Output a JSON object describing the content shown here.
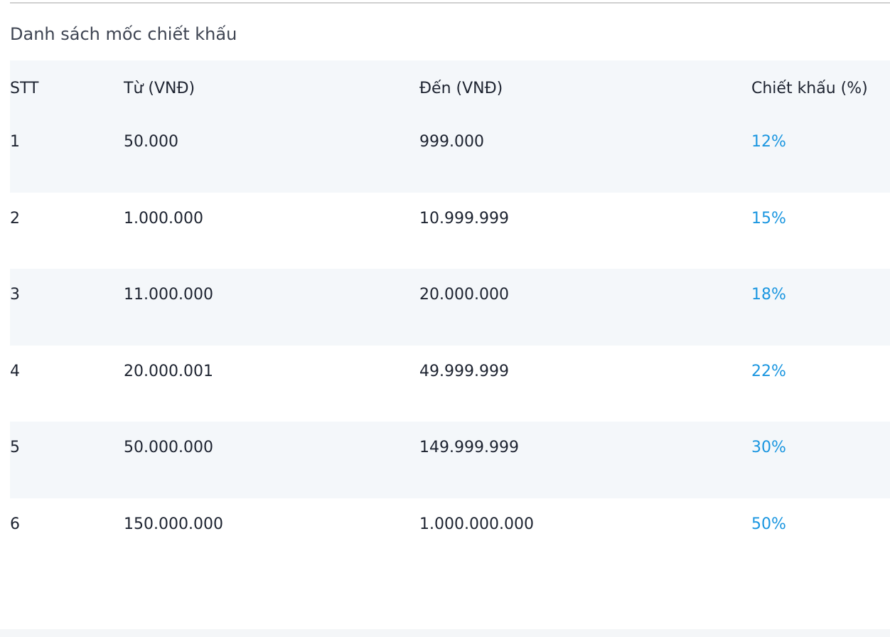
{
  "title": "Danh sách mốc chiết khấu",
  "table": {
    "headers": [
      "STT",
      "Từ (VNĐ)",
      "Đến (VNĐ)",
      "Chiết khấu (%)"
    ],
    "rows": [
      [
        "1",
        "50.000",
        "999.000",
        "12%"
      ],
      [
        "2",
        "1.000.000",
        "10.999.999",
        "15%"
      ],
      [
        "3",
        "11.000.000",
        "20.000.000",
        "18%"
      ],
      [
        "4",
        "20.000.001",
        "49.999.999",
        "22%"
      ],
      [
        "5",
        "50.000.000",
        "149.999.999",
        "30%"
      ],
      [
        "6",
        "150.000.000",
        "1.000.000.000",
        "50%"
      ]
    ]
  }
}
